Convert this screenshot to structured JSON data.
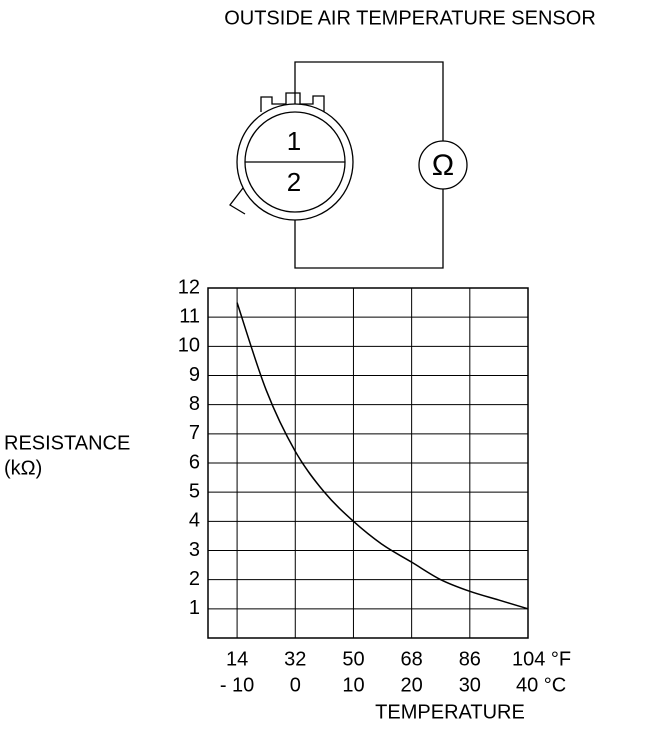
{
  "title": "OUTSIDE AIR TEMPERATURE SENSOR",
  "diagram": {
    "pins": [
      "1",
      "2"
    ],
    "meter": "Ω"
  },
  "chart_data": {
    "type": "line",
    "y_label": [
      "RESISTANCE",
      "(kΩ)"
    ],
    "x_label": "TEMPERATURE",
    "x": [
      -10,
      -5,
      0,
      5,
      10,
      15,
      20,
      25,
      30,
      35,
      40
    ],
    "series": [
      {
        "color": "#000000",
        "values": [
          11.5,
          8.5,
          6.4,
          5.0,
          4.0,
          3.2,
          2.6,
          2.0,
          1.6,
          1.3,
          1.0
        ]
      }
    ],
    "xlim": [
      -15,
      40
    ],
    "xticks": [
      {
        "value": -10,
        "label": "- 10"
      },
      0,
      10,
      20,
      30,
      {
        "value": 40,
        "label": "40 °C"
      }
    ],
    "x2lim": [
      5,
      104
    ],
    "x2ticks": [
      14,
      32,
      50,
      68,
      86,
      {
        "value": 104,
        "label": "104 °F"
      }
    ],
    "ylim": [
      0,
      12
    ],
    "yticks": [
      1,
      2,
      3,
      4,
      5,
      6,
      7,
      8,
      9,
      10,
      11,
      12
    ],
    "grid": true
  }
}
